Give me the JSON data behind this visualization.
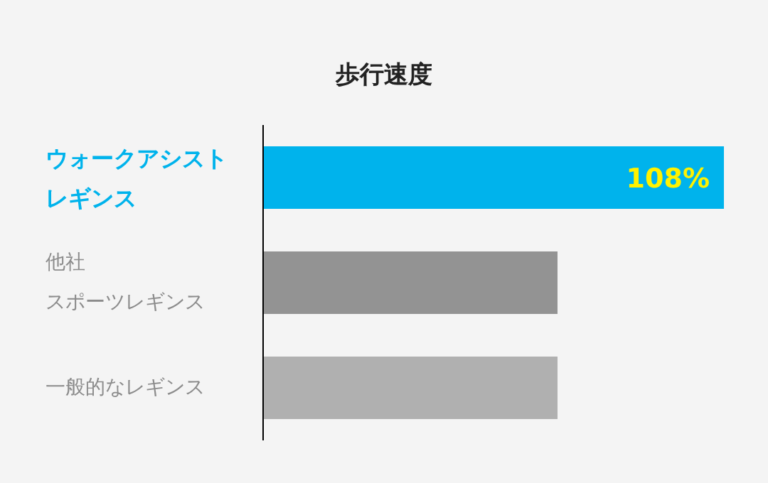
{
  "chart_data": {
    "type": "bar",
    "orientation": "horizontal",
    "title": "歩行速度",
    "tick_labels": "y",
    "categories": [
      "ウォークアシストレギンス",
      "他社スポーツレギンス",
      "一般的なレギンス"
    ],
    "values": [
      108,
      69,
      69
    ],
    "colors": [
      "#00b3ec",
      "#939393",
      "#b0b0b0"
    ],
    "value_labels": [
      "108%",
      null,
      null
    ]
  }
}
